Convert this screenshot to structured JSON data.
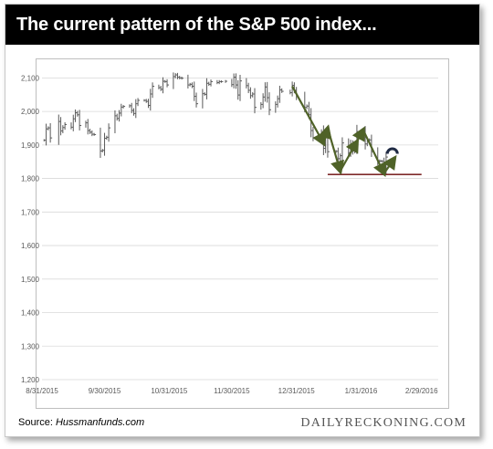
{
  "title": "The current pattern of the S&P 500 index...",
  "source_label": "Source: ",
  "source_name": "Hussmanfunds.com",
  "brand": "DAILYRECKONING.COM",
  "colors": {
    "title_bar": "#000000",
    "ohlc": "#595959",
    "pattern_arrow": "#4f6228",
    "support_line": "#7f2a2a",
    "marker": "#1f2a44"
  },
  "chart_data": {
    "type": "ohlc",
    "title": "The current pattern of the S&P 500 index...",
    "xlabel": "",
    "ylabel": "",
    "ylim": [
      1200,
      2150
    ],
    "xlim": [
      "2015-08-31",
      "2016-03-08"
    ],
    "grid": true,
    "y_ticks": [
      "1,200",
      "1,300",
      "1,400",
      "1,500",
      "1,600",
      "1,700",
      "1,800",
      "1,900",
      "2,000",
      "2,100"
    ],
    "y_tick_values": [
      1200,
      1300,
      1400,
      1500,
      1600,
      1700,
      1800,
      1900,
      2000,
      2100
    ],
    "x_ticks": [
      "8/31/2015",
      "9/30/2015",
      "10/31/2015",
      "11/30/2015",
      "12/31/2015",
      "1/31/2016",
      "2/29/2016"
    ],
    "x_tick_dates": [
      "2015-08-31",
      "2015-09-30",
      "2015-10-31",
      "2015-11-30",
      "2015-12-31",
      "2016-01-31",
      "2016-02-29"
    ],
    "daily_closes": [
      [
        "2015-09-01",
        1914
      ],
      [
        "2015-09-02",
        1948
      ],
      [
        "2015-09-03",
        1951
      ],
      [
        "2015-09-04",
        1921
      ],
      [
        "2015-09-08",
        1970
      ],
      [
        "2015-09-09",
        1942
      ],
      [
        "2015-09-10",
        1952
      ],
      [
        "2015-09-11",
        1961
      ],
      [
        "2015-09-14",
        1953
      ],
      [
        "2015-09-15",
        1978
      ],
      [
        "2015-09-16",
        1996
      ],
      [
        "2015-09-17",
        1990
      ],
      [
        "2015-09-18",
        1958
      ],
      [
        "2015-09-21",
        1966
      ],
      [
        "2015-09-22",
        1943
      ],
      [
        "2015-09-23",
        1938
      ],
      [
        "2015-09-24",
        1932
      ],
      [
        "2015-09-25",
        1931
      ],
      [
        "2015-09-28",
        1882
      ],
      [
        "2015-09-29",
        1884
      ],
      [
        "2015-09-30",
        1920
      ],
      [
        "2015-10-01",
        1923
      ],
      [
        "2015-10-02",
        1951
      ],
      [
        "2015-10-05",
        1987
      ],
      [
        "2015-10-06",
        1979
      ],
      [
        "2015-10-07",
        1995
      ],
      [
        "2015-10-08",
        2013
      ],
      [
        "2015-10-09",
        2015
      ],
      [
        "2015-10-12",
        2017
      ],
      [
        "2015-10-13",
        2003
      ],
      [
        "2015-10-14",
        1994
      ],
      [
        "2015-10-15",
        2023
      ],
      [
        "2015-10-16",
        2033
      ],
      [
        "2015-10-19",
        2033
      ],
      [
        "2015-10-20",
        2030
      ],
      [
        "2015-10-21",
        2018
      ],
      [
        "2015-10-22",
        2052
      ],
      [
        "2015-10-23",
        2075
      ],
      [
        "2015-10-26",
        2071
      ],
      [
        "2015-10-27",
        2066
      ],
      [
        "2015-10-28",
        2090
      ],
      [
        "2015-10-29",
        2089
      ],
      [
        "2015-10-30",
        2079
      ],
      [
        "2015-11-02",
        2104
      ],
      [
        "2015-11-03",
        2109
      ],
      [
        "2015-11-04",
        2102
      ],
      [
        "2015-11-05",
        2100
      ],
      [
        "2015-11-06",
        2099
      ],
      [
        "2015-11-09",
        2079
      ],
      [
        "2015-11-10",
        2081
      ],
      [
        "2015-11-11",
        2075
      ],
      [
        "2015-11-12",
        2045
      ],
      [
        "2015-11-13",
        2023
      ],
      [
        "2015-11-16",
        2053
      ],
      [
        "2015-11-17",
        2051
      ],
      [
        "2015-11-18",
        2084
      ],
      [
        "2015-11-19",
        2081
      ],
      [
        "2015-11-20",
        2089
      ],
      [
        "2015-11-23",
        2086
      ],
      [
        "2015-11-24",
        2089
      ],
      [
        "2015-11-25",
        2089
      ],
      [
        "2015-11-27",
        2090
      ],
      [
        "2015-11-30",
        2080
      ],
      [
        "2015-12-01",
        2102
      ],
      [
        "2015-12-02",
        2079
      ],
      [
        "2015-12-03",
        2049
      ],
      [
        "2015-12-04",
        2091
      ],
      [
        "2015-12-07",
        2077
      ],
      [
        "2015-12-08",
        2063
      ],
      [
        "2015-12-09",
        2047
      ],
      [
        "2015-12-10",
        2052
      ],
      [
        "2015-12-11",
        2012
      ],
      [
        "2015-12-14",
        2021
      ],
      [
        "2015-12-15",
        2043
      ],
      [
        "2015-12-16",
        2073
      ],
      [
        "2015-12-17",
        2041
      ],
      [
        "2015-12-18",
        2005
      ],
      [
        "2015-12-21",
        2021
      ],
      [
        "2015-12-22",
        2038
      ],
      [
        "2015-12-23",
        2064
      ],
      [
        "2015-12-24",
        2060
      ],
      [
        "2015-12-28",
        2056
      ],
      [
        "2015-12-29",
        2078
      ],
      [
        "2015-12-30",
        2063
      ],
      [
        "2015-12-31",
        2044
      ],
      [
        "2016-01-04",
        2012
      ],
      [
        "2016-01-05",
        2016
      ],
      [
        "2016-01-06",
        1990
      ],
      [
        "2016-01-07",
        1943
      ],
      [
        "2016-01-08",
        1922
      ],
      [
        "2016-01-11",
        1923
      ],
      [
        "2016-01-12",
        1938
      ],
      [
        "2016-01-13",
        1890
      ],
      [
        "2016-01-14",
        1921
      ],
      [
        "2016-01-15",
        1880
      ],
      [
        "2016-01-19",
        1881
      ],
      [
        "2016-01-20",
        1859
      ],
      [
        "2016-01-21",
        1868
      ],
      [
        "2016-01-22",
        1906
      ],
      [
        "2016-01-25",
        1877
      ],
      [
        "2016-01-26",
        1903
      ],
      [
        "2016-01-27",
        1882
      ],
      [
        "2016-01-28",
        1893
      ],
      [
        "2016-01-29",
        1940
      ],
      [
        "2016-02-01",
        1940
      ],
      [
        "2016-02-02",
        1903
      ],
      [
        "2016-02-03",
        1912
      ],
      [
        "2016-02-04",
        1915
      ],
      [
        "2016-02-05",
        1880
      ],
      [
        "2016-02-08",
        1853
      ],
      [
        "2016-02-09",
        1852
      ],
      [
        "2016-02-10",
        1851
      ],
      [
        "2016-02-11",
        1829
      ],
      [
        "2016-02-12",
        1864
      ]
    ],
    "pattern_path": [
      [
        "2015-12-29",
        2075
      ],
      [
        "2016-01-13",
        1905
      ],
      [
        "2016-01-15",
        1950
      ],
      [
        "2016-01-21",
        1822
      ],
      [
        "2016-01-29",
        1910
      ],
      [
        "2016-02-01",
        1945
      ],
      [
        "2016-02-11",
        1815
      ],
      [
        "2016-02-16",
        1860
      ]
    ],
    "support_line": {
      "from": "2016-01-15",
      "to": "2016-02-29",
      "value": 1812
    },
    "marker": {
      "date": "2016-02-15",
      "value": 1882
    }
  }
}
